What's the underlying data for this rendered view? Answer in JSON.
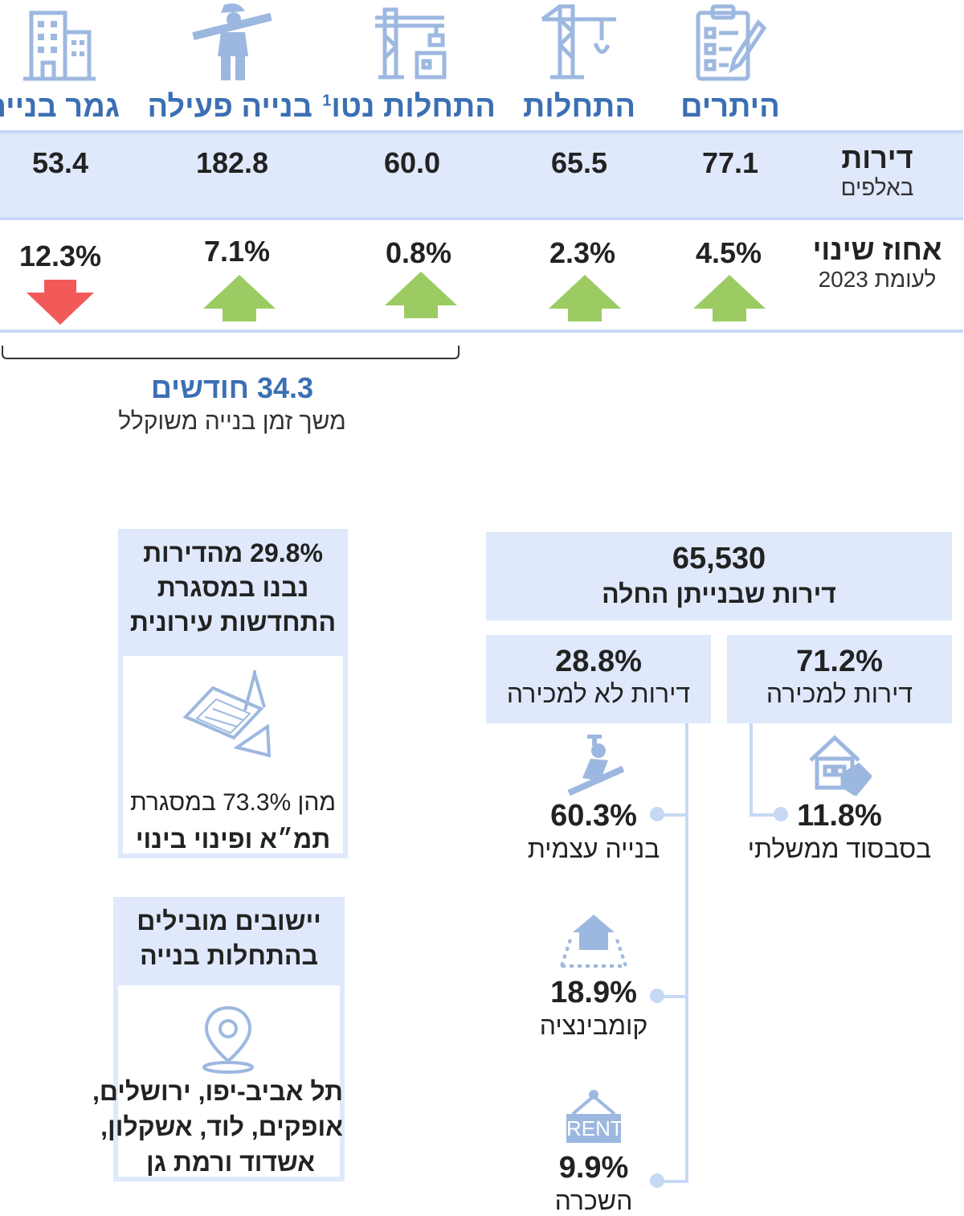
{
  "stages": [
    {
      "label": "היתרים",
      "value": "77.1",
      "change": "4.5%",
      "direction": "up",
      "icon": "clipboard-icon"
    },
    {
      "label": "התחלות",
      "value": "65.5",
      "change": "2.3%",
      "direction": "up",
      "icon": "crane-hook-icon"
    },
    {
      "label": "התחלות נטו",
      "sup": "1",
      "value": "60.0",
      "change": "0.8%",
      "direction": "up",
      "icon": "crane-building-icon"
    },
    {
      "label": "בנייה פעילה",
      "value": "182.8",
      "change": "7.1%",
      "direction": "up",
      "icon": "construction-worker-icon"
    },
    {
      "label": "גמר בנייה",
      "value": "53.4",
      "change": "12.3%",
      "direction": "down",
      "icon": "building-icon"
    }
  ],
  "rows": {
    "units_title": "דירות",
    "units_sub": "באלפים",
    "change_title": "אחוז שינוי",
    "change_sub": "לעומת 2023"
  },
  "duration": {
    "value": "34.3 חודשים",
    "label": "משך זמן בנייה משוקלל"
  },
  "starts": {
    "total": "65,530",
    "total_label": "דירות שבנייתן החלה",
    "for_sale": {
      "pct": "71.2%",
      "label": "דירות למכירה"
    },
    "not_for_sale": {
      "pct": "28.8%",
      "label": "דירות לא למכירה"
    },
    "subsidized": {
      "pct": "11.8%",
      "label": "בסבסוד ממשלתי"
    },
    "self_build": {
      "pct": "60.3%",
      "label": "בנייה עצמית"
    },
    "combination": {
      "pct": "18.9%",
      "label": "קומבינציה"
    },
    "rental": {
      "pct": "9.9%",
      "label": "השכרה",
      "sign": "RENT"
    }
  },
  "urban_renewal": {
    "line1": "29.8% מהדירות",
    "line2": "נבנו במסגרת",
    "line3": "התחדשות עירונית",
    "detail": "מהן 73.3% במסגרת",
    "detail_bold": "תמ״א ופינוי בינוי"
  },
  "leading": {
    "title1": "יישובים מובילים",
    "title2": "בהתחלות בנייה",
    "line1": "תל אביב-יפו, ירושלים,",
    "line2": "אופקים, לוד, אשקלון,",
    "line3": "אשדוד ורמת גן"
  },
  "colors": {
    "accent": "#3b6fb3",
    "band": "#dfe9fb",
    "line": "#c6d8f3",
    "up": "#9ccb63",
    "down": "#f25a5a",
    "icon": "#9db8e0"
  }
}
